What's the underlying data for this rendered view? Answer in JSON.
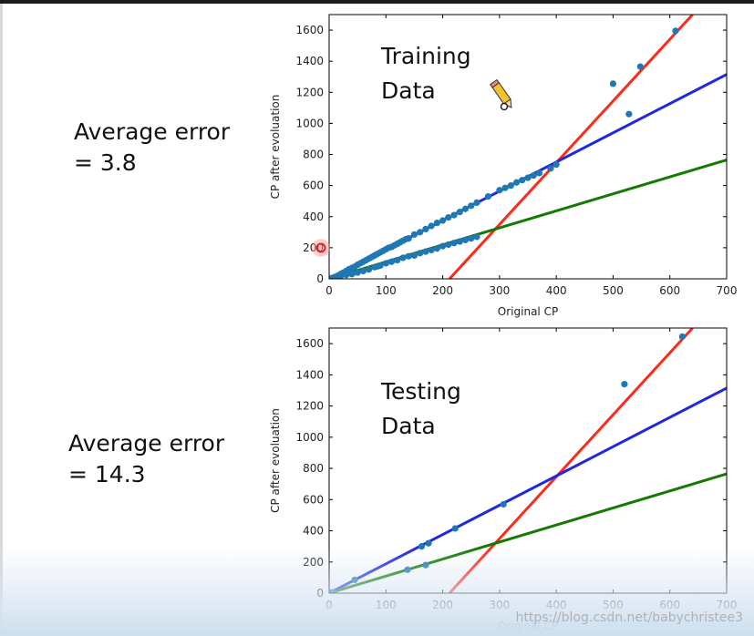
{
  "labels": {
    "train_error_line1": "Average error",
    "train_error_line2": "= 3.8",
    "test_error_line1": "Average error",
    "test_error_line2": "= 14.3",
    "watermark": "https://blog.csdn.net/babychristee3"
  },
  "colors": {
    "red_fit": "#ff2a1a",
    "blue_fit": "#1f28e0",
    "green_fit": "#137a00",
    "point": "#1f77b4"
  },
  "chart_data": [
    {
      "type": "scatter",
      "annotation": [
        "Training",
        "Data"
      ],
      "xlabel": "Original CP",
      "ylabel": "CP after evoluation",
      "xlim": [
        0,
        700
      ],
      "ylim": [
        0,
        1700
      ],
      "xticks": [
        0,
        100,
        200,
        300,
        400,
        500,
        600,
        700
      ],
      "yticks": [
        0,
        200,
        400,
        600,
        800,
        1000,
        1200,
        1400,
        1600
      ],
      "grid": false,
      "fit_lines": [
        {
          "color": "red",
          "points": [
            [
              212,
              0
            ],
            [
              640,
              1700
            ]
          ]
        },
        {
          "color": "blue",
          "points": [
            [
              0,
              0
            ],
            [
              700,
              1315
            ]
          ]
        },
        {
          "color": "green",
          "points": [
            [
              0,
              0
            ],
            [
              700,
              765
            ]
          ]
        }
      ],
      "points": [
        [
          5,
          5
        ],
        [
          10,
          12
        ],
        [
          15,
          20
        ],
        [
          20,
          30
        ],
        [
          25,
          40
        ],
        [
          30,
          50
        ],
        [
          35,
          62
        ],
        [
          40,
          70
        ],
        [
          45,
          78
        ],
        [
          50,
          90
        ],
        [
          55,
          100
        ],
        [
          60,
          110
        ],
        [
          65,
          120
        ],
        [
          70,
          130
        ],
        [
          75,
          140
        ],
        [
          80,
          150
        ],
        [
          85,
          160
        ],
        [
          90,
          170
        ],
        [
          95,
          180
        ],
        [
          100,
          190
        ],
        [
          105,
          200
        ],
        [
          110,
          205
        ],
        [
          115,
          215
        ],
        [
          120,
          225
        ],
        [
          125,
          235
        ],
        [
          130,
          245
        ],
        [
          135,
          255
        ],
        [
          140,
          260
        ],
        [
          150,
          285
        ],
        [
          160,
          300
        ],
        [
          170,
          320
        ],
        [
          180,
          340
        ],
        [
          190,
          360
        ],
        [
          200,
          375
        ],
        [
          210,
          395
        ],
        [
          220,
          410
        ],
        [
          230,
          430
        ],
        [
          240,
          450
        ],
        [
          250,
          470
        ],
        [
          260,
          490
        ],
        [
          280,
          530
        ],
        [
          300,
          570
        ],
        [
          310,
          585
        ],
        [
          320,
          600
        ],
        [
          330,
          620
        ],
        [
          340,
          635
        ],
        [
          350,
          650
        ],
        [
          360,
          665
        ],
        [
          370,
          680
        ],
        [
          390,
          710
        ],
        [
          400,
          735
        ],
        [
          20,
          15
        ],
        [
          30,
          25
        ],
        [
          40,
          30
        ],
        [
          50,
          40
        ],
        [
          60,
          50
        ],
        [
          70,
          60
        ],
        [
          80,
          75
        ],
        [
          85,
          80
        ],
        [
          90,
          85
        ],
        [
          100,
          100
        ],
        [
          110,
          110
        ],
        [
          120,
          120
        ],
        [
          130,
          135
        ],
        [
          140,
          145
        ],
        [
          150,
          150
        ],
        [
          160,
          165
        ],
        [
          170,
          175
        ],
        [
          180,
          185
        ],
        [
          190,
          195
        ],
        [
          200,
          210
        ],
        [
          210,
          220
        ],
        [
          220,
          230
        ],
        [
          230,
          240
        ],
        [
          240,
          250
        ],
        [
          250,
          260
        ],
        [
          260,
          270
        ],
        [
          500,
          1255
        ],
        [
          528,
          1060
        ],
        [
          548,
          1365
        ],
        [
          610,
          1595
        ]
      ]
    },
    {
      "type": "scatter",
      "annotation": [
        "Testing",
        "Data"
      ],
      "xlabel": "Original CP",
      "ylabel": "CP after evoluation",
      "xlim": [
        0,
        700
      ],
      "ylim": [
        0,
        1700
      ],
      "xticks": [
        0,
        100,
        200,
        300,
        400,
        500,
        600,
        700
      ],
      "yticks": [
        0,
        200,
        400,
        600,
        800,
        1000,
        1200,
        1400,
        1600
      ],
      "grid": false,
      "fit_lines": [
        {
          "color": "red",
          "points": [
            [
              212,
              0
            ],
            [
              640,
              1700
            ]
          ]
        },
        {
          "color": "blue",
          "points": [
            [
              0,
              0
            ],
            [
              700,
              1315
            ]
          ]
        },
        {
          "color": "green",
          "points": [
            [
              0,
              0
            ],
            [
              700,
              765
            ]
          ]
        }
      ],
      "points": [
        [
          5,
          5
        ],
        [
          45,
          85
        ],
        [
          138,
          150
        ],
        [
          163,
          300
        ],
        [
          170,
          180
        ],
        [
          175,
          320
        ],
        [
          222,
          415
        ],
        [
          307,
          570
        ],
        [
          520,
          1340
        ],
        [
          622,
          1645
        ]
      ]
    }
  ]
}
